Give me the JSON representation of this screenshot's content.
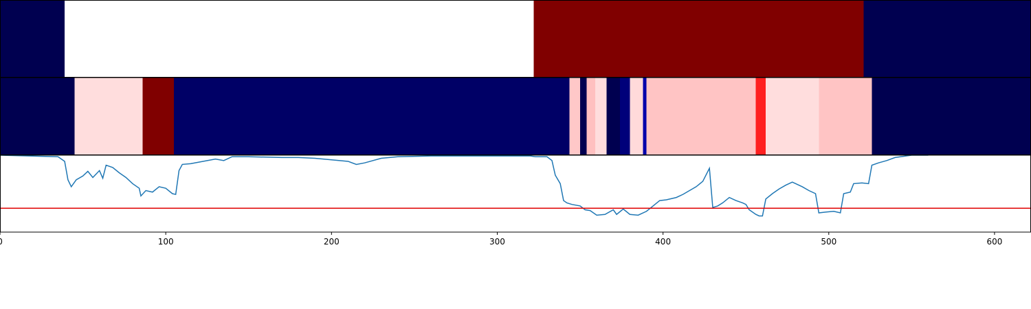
{
  "chart_data": [
    {
      "type": "strip",
      "xlim": [
        0,
        622
      ],
      "segments": [
        {
          "start": 0,
          "end": 39,
          "color": "#000050"
        },
        {
          "start": 39,
          "end": 322,
          "color": "#ffffff"
        },
        {
          "start": 322,
          "end": 521,
          "color": "#800000"
        },
        {
          "start": 521,
          "end": 622,
          "color": "#000050"
        }
      ]
    },
    {
      "type": "strip",
      "xlim": [
        0,
        622
      ],
      "segments": [
        {
          "start": 0,
          "end": 45,
          "color": "#000050"
        },
        {
          "start": 45,
          "end": 86,
          "color": "#ffdddd"
        },
        {
          "start": 86,
          "end": 105,
          "color": "#800000"
        },
        {
          "start": 105,
          "end": 343.5,
          "color": "#000066"
        },
        {
          "start": 343.5,
          "end": 350,
          "color": "#ffc8c8"
        },
        {
          "start": 350,
          "end": 354,
          "color": "#000050"
        },
        {
          "start": 354,
          "end": 359,
          "color": "#ffc0c0"
        },
        {
          "start": 359,
          "end": 366,
          "color": "#ffdddd"
        },
        {
          "start": 366,
          "end": 374,
          "color": "#000050"
        },
        {
          "start": 374,
          "end": 380,
          "color": "#00007a"
        },
        {
          "start": 380,
          "end": 388,
          "color": "#ffdada"
        },
        {
          "start": 388,
          "end": 390,
          "color": "#0000aa"
        },
        {
          "start": 390,
          "end": 456,
          "color": "#ffc4c4"
        },
        {
          "start": 456,
          "end": 462,
          "color": "#ff2020"
        },
        {
          "start": 462,
          "end": 494,
          "color": "#ffdddd"
        },
        {
          "start": 494,
          "end": 526,
          "color": "#ffc4c4"
        },
        {
          "start": 526,
          "end": 622,
          "color": "#000050"
        }
      ]
    },
    {
      "type": "line",
      "xlim": [
        0,
        622
      ],
      "ylim": [
        0,
        1
      ],
      "xticks": [
        0,
        100,
        200,
        300,
        400,
        500,
        600
      ],
      "color": "#1f77b4",
      "threshold": 0.31,
      "threshold_color": "#e00000",
      "x": [
        0,
        35,
        39,
        41,
        43,
        46,
        50,
        53,
        56,
        60,
        62,
        64,
        68,
        72,
        76,
        80,
        84,
        85,
        88,
        92,
        96,
        100,
        104,
        106,
        108,
        110,
        115,
        120,
        125,
        130,
        135,
        140,
        150,
        170,
        180,
        190,
        200,
        210,
        215,
        220,
        230,
        240,
        260,
        300,
        320,
        323,
        330,
        333,
        335,
        338,
        340,
        342,
        345,
        350,
        353,
        356,
        360,
        365,
        370,
        372,
        376,
        380,
        385,
        390,
        394,
        398,
        402,
        408,
        412,
        416,
        420,
        424,
        428,
        430,
        433,
        436,
        440,
        444,
        448,
        450,
        452,
        456,
        458,
        460,
        462,
        466,
        470,
        474,
        478,
        481,
        484,
        488,
        492,
        494,
        498,
        503,
        507,
        509,
        513,
        515,
        520,
        524,
        526,
        530,
        535,
        540,
        550,
        560
      ],
      "values": [
        1.0,
        0.98,
        0.92,
        0.68,
        0.59,
        0.68,
        0.73,
        0.79,
        0.71,
        0.8,
        0.7,
        0.87,
        0.84,
        0.77,
        0.71,
        0.63,
        0.57,
        0.47,
        0.54,
        0.52,
        0.59,
        0.57,
        0.5,
        0.49,
        0.8,
        0.88,
        0.89,
        0.91,
        0.93,
        0.95,
        0.93,
        0.98,
        0.98,
        0.97,
        0.97,
        0.96,
        0.94,
        0.92,
        0.88,
        0.9,
        0.96,
        0.98,
        0.99,
        0.99,
        0.99,
        0.98,
        0.98,
        0.93,
        0.74,
        0.63,
        0.41,
        0.38,
        0.36,
        0.34,
        0.29,
        0.28,
        0.22,
        0.23,
        0.29,
        0.23,
        0.3,
        0.23,
        0.22,
        0.27,
        0.34,
        0.41,
        0.42,
        0.45,
        0.49,
        0.54,
        0.59,
        0.66,
        0.83,
        0.32,
        0.34,
        0.38,
        0.45,
        0.41,
        0.38,
        0.36,
        0.29,
        0.23,
        0.21,
        0.21,
        0.43,
        0.5,
        0.56,
        0.61,
        0.65,
        0.62,
        0.59,
        0.54,
        0.5,
        0.25,
        0.26,
        0.27,
        0.25,
        0.5,
        0.52,
        0.63,
        0.64,
        0.63,
        0.87,
        0.9,
        0.93,
        0.97,
        1.0,
        1.0
      ]
    }
  ]
}
